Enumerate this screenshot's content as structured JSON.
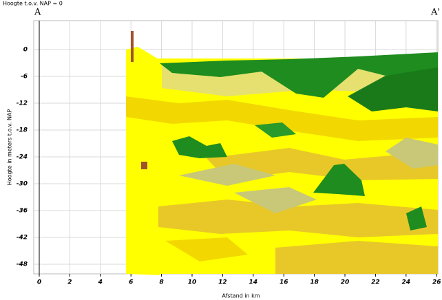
{
  "chart_data": {
    "type": "cross-section",
    "title": "Hoogte t.o.v. NAP = 0",
    "section_start_label": "A",
    "section_end_label": "A'",
    "xlabel": "Afstand in km",
    "ylabel": "Hoogte in meters t.o.v. NAP",
    "xlim": [
      -0.36,
      26.08
    ],
    "ylim": [
      -50.15,
      6.46
    ],
    "xticks": [
      0,
      2,
      4,
      6,
      8,
      10,
      12,
      14,
      16,
      18,
      20,
      22,
      24,
      26
    ],
    "yticks": [
      0,
      -6,
      -12,
      -18,
      -24,
      -30,
      -36,
      -42,
      -48
    ],
    "grid": true
  }
}
